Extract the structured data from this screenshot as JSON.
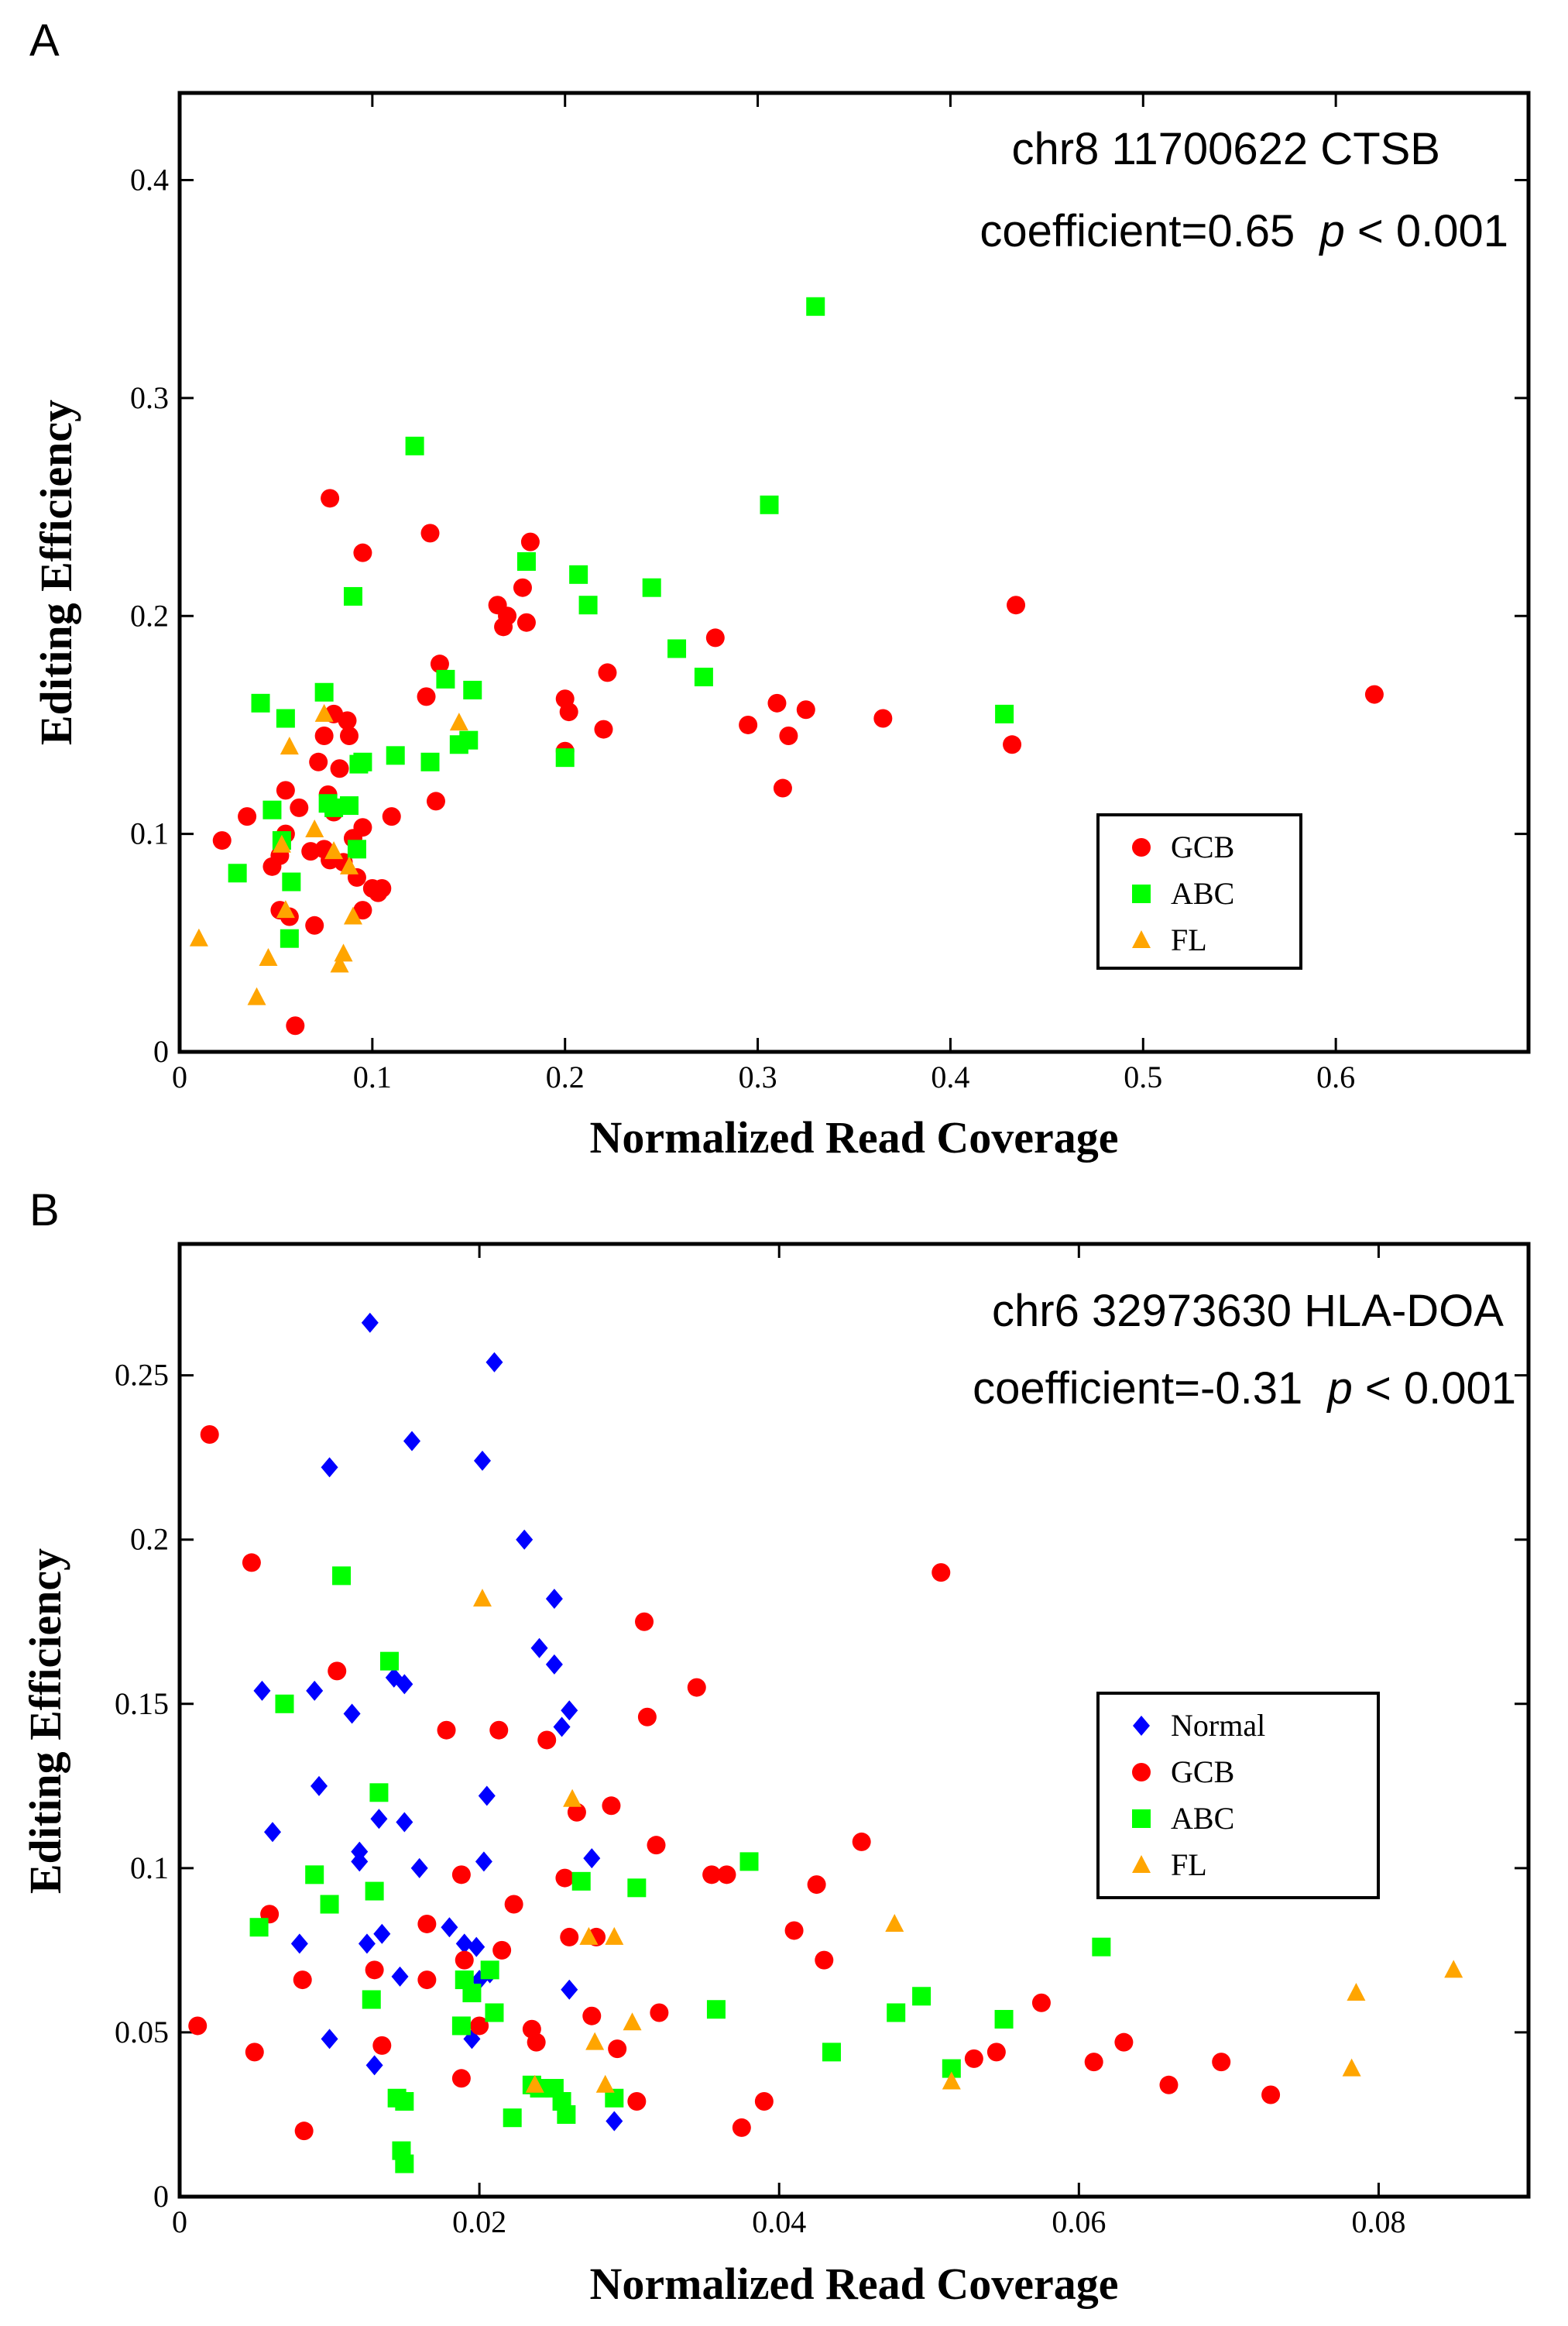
{
  "chart_data": [
    {
      "type": "scatter",
      "panel_label": "A",
      "annotation_line1": "chr8 11700622 CTSB",
      "annotation_line2_prefix": "coefficient=0.65  ",
      "annotation_p": "p",
      "annotation_line2_suffix": " < 0.001",
      "xlabel": "Normalized Read Coverage",
      "ylabel": "Editing Efficiency",
      "xlim": [
        0,
        0.7
      ],
      "ylim": [
        0,
        0.44
      ],
      "xticks": [
        0,
        0.1,
        0.2,
        0.3,
        0.4,
        0.5,
        0.6
      ],
      "xtick_labels": [
        "0",
        "0.1",
        "0.2",
        "0.3",
        "0.4",
        "0.5",
        "0.6"
      ],
      "yticks": [
        0,
        0.1,
        0.2,
        0.3,
        0.4
      ],
      "ytick_labels": [
        "0",
        "0.1",
        "0.2",
        "0.3",
        "0.4"
      ],
      "grid": false,
      "legend_position": "bottom-right",
      "series": [
        {
          "name": "GCB",
          "marker": "circle",
          "color": "#ff0000",
          "x": [
            0.022,
            0.035,
            0.048,
            0.052,
            0.055,
            0.055,
            0.057,
            0.06,
            0.062,
            0.07,
            0.072,
            0.075,
            0.075,
            0.077,
            0.078,
            0.08,
            0.08,
            0.083,
            0.085,
            0.087,
            0.088,
            0.09,
            0.092,
            0.095,
            0.095,
            0.1,
            0.103,
            0.105,
            0.11,
            0.128,
            0.13,
            0.133,
            0.135,
            0.165,
            0.168,
            0.17,
            0.178,
            0.18,
            0.182,
            0.2,
            0.2,
            0.202,
            0.22,
            0.222,
            0.278,
            0.295,
            0.31,
            0.313,
            0.316,
            0.325,
            0.365,
            0.432,
            0.434,
            0.62,
            0.068,
            0.052,
            0.095,
            0.078
          ],
          "y": [
            0.097,
            0.108,
            0.085,
            0.065,
            0.1,
            0.12,
            0.062,
            0.012,
            0.112,
            0.058,
            0.133,
            0.093,
            0.145,
            0.118,
            0.254,
            0.155,
            0.11,
            0.13,
            0.087,
            0.152,
            0.145,
            0.098,
            0.08,
            0.229,
            0.065,
            0.075,
            0.073,
            0.075,
            0.108,
            0.163,
            0.238,
            0.115,
            0.178,
            0.205,
            0.195,
            0.2,
            0.213,
            0.197,
            0.234,
            0.162,
            0.138,
            0.156,
            0.148,
            0.174,
            0.19,
            0.15,
            0.16,
            0.121,
            0.145,
            0.157,
            0.153,
            0.141,
            0.205,
            0.164,
            0.092,
            0.09,
            0.103,
            0.088
          ]
        },
        {
          "name": "ABC",
          "marker": "square",
          "color": "#00ff00",
          "x": [
            0.03,
            0.042,
            0.048,
            0.053,
            0.055,
            0.057,
            0.058,
            0.075,
            0.077,
            0.08,
            0.088,
            0.09,
            0.092,
            0.093,
            0.095,
            0.112,
            0.122,
            0.13,
            0.138,
            0.145,
            0.15,
            0.152,
            0.18,
            0.207,
            0.212,
            0.2,
            0.245,
            0.258,
            0.272,
            0.306,
            0.33,
            0.428
          ],
          "y": [
            0.082,
            0.16,
            0.111,
            0.097,
            0.153,
            0.052,
            0.078,
            0.165,
            0.114,
            0.112,
            0.113,
            0.209,
            0.093,
            0.132,
            0.133,
            0.136,
            0.278,
            0.133,
            0.171,
            0.141,
            0.143,
            0.166,
            0.225,
            0.219,
            0.205,
            0.135,
            0.213,
            0.185,
            0.172,
            0.251,
            0.342,
            0.155
          ]
        },
        {
          "name": "FL",
          "marker": "triangle",
          "color": "#ffa500",
          "x": [
            0.01,
            0.04,
            0.046,
            0.053,
            0.055,
            0.057,
            0.07,
            0.075,
            0.08,
            0.083,
            0.085,
            0.088,
            0.09,
            0.145
          ],
          "y": [
            0.052,
            0.025,
            0.043,
            0.095,
            0.065,
            0.14,
            0.102,
            0.155,
            0.092,
            0.04,
            0.045,
            0.085,
            0.062,
            0.151
          ]
        }
      ]
    },
    {
      "type": "scatter",
      "panel_label": "B",
      "annotation_line1": "chr6 32973630 HLA-DOA",
      "annotation_line2_prefix": "coefficient=-0.31  ",
      "annotation_p": "p",
      "annotation_line2_suffix": " < 0.001",
      "xlabel": "Normalized Read Coverage",
      "ylabel": "Editing Efficiency",
      "xlim": [
        0,
        0.09
      ],
      "ylim": [
        0,
        0.29
      ],
      "xticks": [
        0,
        0.02,
        0.04,
        0.06,
        0.08
      ],
      "xtick_labels": [
        "0",
        "0.02",
        "0.04",
        "0.06",
        "0.08"
      ],
      "yticks": [
        0,
        0.05,
        0.1,
        0.15,
        0.2,
        0.25
      ],
      "ytick_labels": [
        "0",
        "0.05",
        "0.1",
        "0.15",
        "0.2",
        "0.25"
      ],
      "grid": false,
      "legend_position": "right",
      "series": [
        {
          "name": "Normal",
          "marker": "diamond",
          "color": "#0000ff",
          "x": [
            0.0055,
            0.0062,
            0.008,
            0.009,
            0.0093,
            0.01,
            0.01,
            0.0115,
            0.012,
            0.012,
            0.0125,
            0.0127,
            0.013,
            0.0133,
            0.0135,
            0.0143,
            0.0147,
            0.015,
            0.015,
            0.0155,
            0.016,
            0.018,
            0.019,
            0.0195,
            0.0198,
            0.02,
            0.0202,
            0.0203,
            0.0205,
            0.0207,
            0.021,
            0.023,
            0.024,
            0.025,
            0.025,
            0.0255,
            0.026,
            0.026,
            0.0275,
            0.029
          ],
          "y": [
            0.154,
            0.111,
            0.077,
            0.154,
            0.125,
            0.048,
            0.222,
            0.147,
            0.105,
            0.102,
            0.077,
            0.266,
            0.04,
            0.115,
            0.08,
            0.158,
            0.067,
            0.156,
            0.114,
            0.23,
            0.1,
            0.082,
            0.077,
            0.048,
            0.076,
            0.066,
            0.224,
            0.102,
            0.122,
            0.068,
            0.254,
            0.2,
            0.167,
            0.182,
            0.162,
            0.143,
            0.063,
            0.148,
            0.103,
            0.023
          ]
        },
        {
          "name": "GCB",
          "marker": "circle",
          "color": "#ff0000",
          "x": [
            0.0012,
            0.002,
            0.0048,
            0.005,
            0.006,
            0.0082,
            0.0083,
            0.0105,
            0.013,
            0.0135,
            0.0165,
            0.0165,
            0.0178,
            0.0188,
            0.0188,
            0.019,
            0.02,
            0.0213,
            0.0215,
            0.0223,
            0.0235,
            0.0238,
            0.0245,
            0.0257,
            0.026,
            0.0265,
            0.0275,
            0.0278,
            0.0288,
            0.0292,
            0.0305,
            0.031,
            0.0312,
            0.0318,
            0.032,
            0.0345,
            0.0355,
            0.0365,
            0.0375,
            0.039,
            0.041,
            0.0425,
            0.043,
            0.0455,
            0.0508,
            0.053,
            0.0545,
            0.0575,
            0.061,
            0.063,
            0.066,
            0.0695,
            0.0728
          ],
          "y": [
            0.052,
            0.232,
            0.193,
            0.044,
            0.086,
            0.066,
            0.02,
            0.16,
            0.069,
            0.046,
            0.083,
            0.066,
            0.142,
            0.098,
            0.036,
            0.072,
            0.052,
            0.142,
            0.075,
            0.089,
            0.051,
            0.047,
            0.139,
            0.097,
            0.079,
            0.117,
            0.055,
            0.079,
            0.119,
            0.045,
            0.029,
            0.175,
            0.146,
            0.107,
            0.056,
            0.155,
            0.098,
            0.098,
            0.021,
            0.029,
            0.081,
            0.095,
            0.072,
            0.108,
            0.19,
            0.042,
            0.044,
            0.059,
            0.041,
            0.047,
            0.034,
            0.041,
            0.031
          ]
        },
        {
          "name": "ABC",
          "marker": "square",
          "color": "#00ff00",
          "x": [
            0.0053,
            0.007,
            0.009,
            0.01,
            0.0108,
            0.0128,
            0.013,
            0.0133,
            0.014,
            0.0145,
            0.0148,
            0.015,
            0.015,
            0.0188,
            0.019,
            0.0195,
            0.0207,
            0.021,
            0.0222,
            0.0235,
            0.024,
            0.025,
            0.0255,
            0.0258,
            0.0268,
            0.029,
            0.0305,
            0.0358,
            0.038,
            0.0435,
            0.0478,
            0.0495,
            0.0515,
            0.055,
            0.0615
          ],
          "y": [
            0.082,
            0.15,
            0.098,
            0.089,
            0.189,
            0.06,
            0.093,
            0.123,
            0.163,
            0.03,
            0.014,
            0.01,
            0.029,
            0.052,
            0.066,
            0.062,
            0.069,
            0.056,
            0.024,
            0.034,
            0.033,
            0.033,
            0.029,
            0.025,
            0.096,
            0.03,
            0.094,
            0.057,
            0.102,
            0.044,
            0.056,
            0.061,
            0.039,
            0.054,
            0.076
          ]
        },
        {
          "name": "FL",
          "marker": "triangle",
          "color": "#ffa500",
          "x": [
            0.0202,
            0.0237,
            0.0262,
            0.0273,
            0.0277,
            0.0284,
            0.029,
            0.0302,
            0.0477,
            0.0515,
            0.0782,
            0.0785,
            0.085
          ],
          "y": [
            0.182,
            0.034,
            0.121,
            0.079,
            0.047,
            0.034,
            0.079,
            0.053,
            0.083,
            0.035,
            0.039,
            0.062,
            0.069
          ]
        }
      ]
    }
  ]
}
